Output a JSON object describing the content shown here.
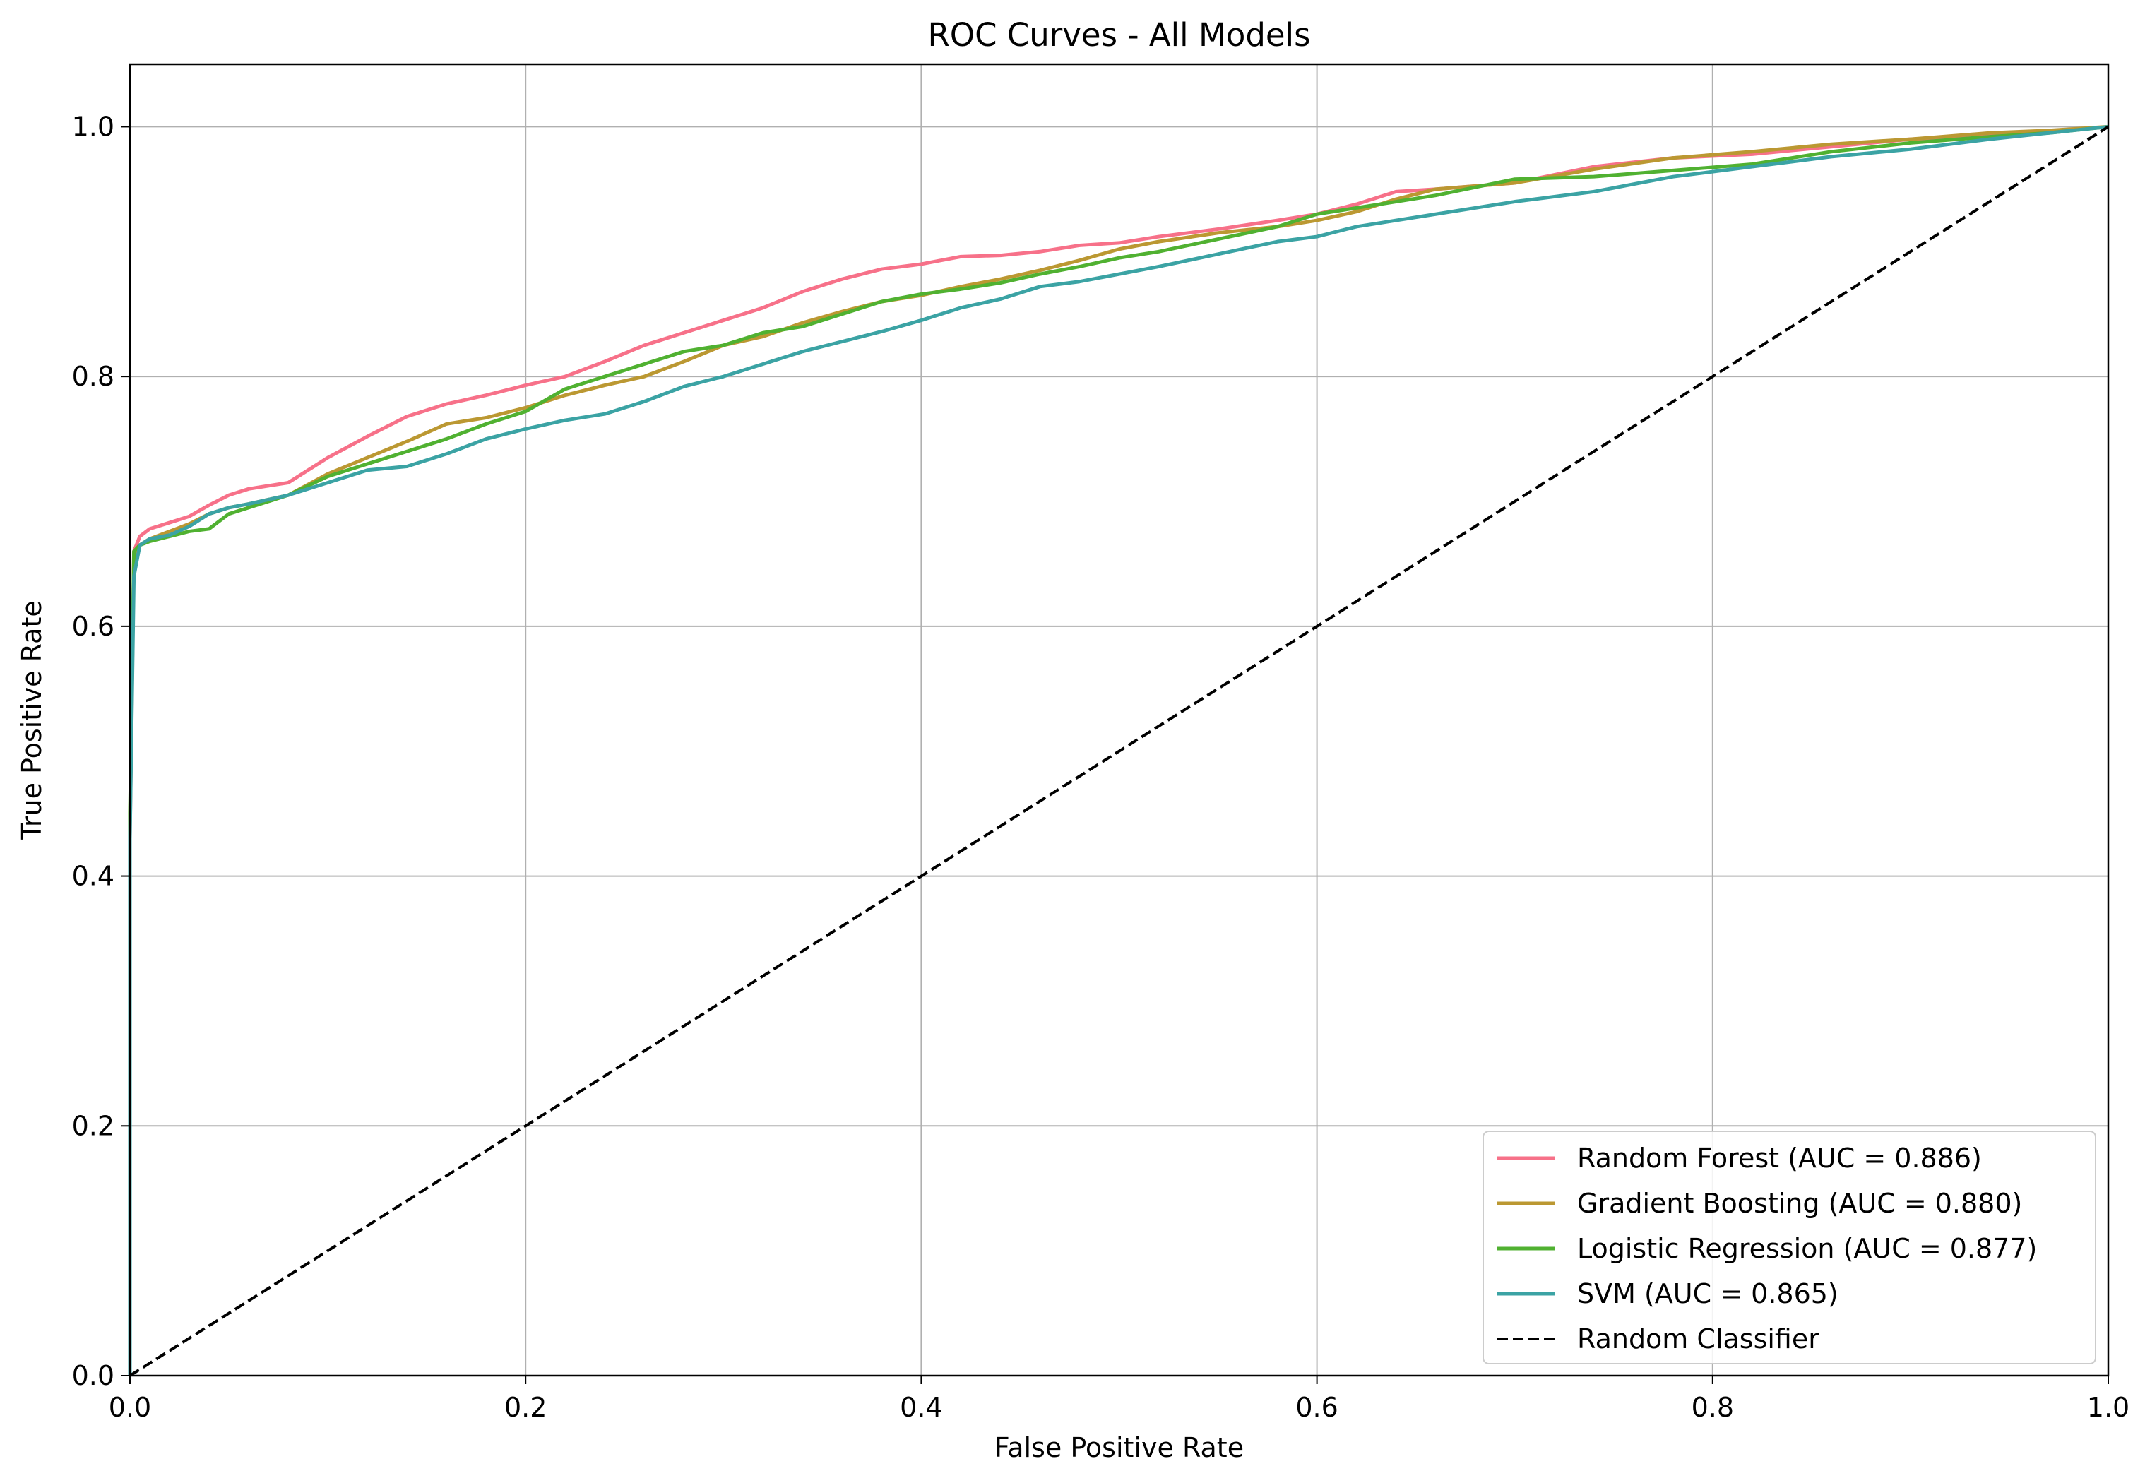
{
  "chart_data": {
    "type": "line",
    "title": "ROC Curves - All Models",
    "xlabel": "False Positive Rate",
    "ylabel": "True Positive Rate",
    "xlim": [
      0.0,
      1.0
    ],
    "ylim": [
      0.0,
      1.05
    ],
    "xticks": [
      0.0,
      0.2,
      0.4,
      0.6,
      0.8,
      1.0
    ],
    "xtick_labels": [
      "0.0",
      "0.2",
      "0.4",
      "0.6",
      "0.8",
      "1.0"
    ],
    "yticks": [
      0.0,
      0.2,
      0.4,
      0.6,
      0.8,
      1.0
    ],
    "ytick_labels": [
      "0.0",
      "0.2",
      "0.4",
      "0.6",
      "0.8",
      "1.0"
    ],
    "grid": true,
    "legend_position": "lower-right",
    "series": [
      {
        "name": "Random Forest (AUC = 0.886)",
        "color": "#f77189",
        "style": "solid",
        "x": [
          0.0,
          0.0,
          0.002,
          0.005,
          0.01,
          0.02,
          0.03,
          0.04,
          0.05,
          0.06,
          0.08,
          0.1,
          0.12,
          0.14,
          0.16,
          0.18,
          0.2,
          0.22,
          0.24,
          0.26,
          0.28,
          0.3,
          0.32,
          0.34,
          0.36,
          0.38,
          0.4,
          0.42,
          0.44,
          0.46,
          0.48,
          0.5,
          0.52,
          0.55,
          0.58,
          0.6,
          0.62,
          0.64,
          0.66,
          0.7,
          0.74,
          0.78,
          0.82,
          0.86,
          0.9,
          0.94,
          0.97,
          1.0
        ],
        "y": [
          0.0,
          0.43,
          0.66,
          0.672,
          0.678,
          0.683,
          0.688,
          0.697,
          0.705,
          0.71,
          0.715,
          0.735,
          0.752,
          0.768,
          0.778,
          0.785,
          0.793,
          0.8,
          0.812,
          0.825,
          0.835,
          0.845,
          0.855,
          0.868,
          0.878,
          0.886,
          0.89,
          0.896,
          0.897,
          0.9,
          0.905,
          0.907,
          0.912,
          0.918,
          0.925,
          0.93,
          0.938,
          0.948,
          0.95,
          0.955,
          0.968,
          0.975,
          0.978,
          0.984,
          0.99,
          0.993,
          0.996,
          1.0
        ]
      },
      {
        "name": "Gradient Boosting (AUC = 0.880)",
        "color": "#bb9832",
        "style": "solid",
        "x": [
          0.0,
          0.0,
          0.002,
          0.005,
          0.01,
          0.02,
          0.03,
          0.04,
          0.05,
          0.06,
          0.08,
          0.1,
          0.12,
          0.14,
          0.16,
          0.18,
          0.2,
          0.22,
          0.24,
          0.26,
          0.28,
          0.3,
          0.32,
          0.34,
          0.36,
          0.38,
          0.4,
          0.42,
          0.44,
          0.46,
          0.48,
          0.5,
          0.52,
          0.55,
          0.58,
          0.6,
          0.62,
          0.64,
          0.66,
          0.7,
          0.74,
          0.78,
          0.82,
          0.86,
          0.9,
          0.94,
          0.97,
          1.0
        ],
        "y": [
          0.0,
          0.44,
          0.655,
          0.665,
          0.67,
          0.676,
          0.682,
          0.69,
          0.695,
          0.698,
          0.705,
          0.722,
          0.735,
          0.748,
          0.762,
          0.767,
          0.775,
          0.785,
          0.793,
          0.8,
          0.812,
          0.825,
          0.832,
          0.843,
          0.852,
          0.86,
          0.865,
          0.872,
          0.878,
          0.885,
          0.893,
          0.902,
          0.908,
          0.915,
          0.92,
          0.925,
          0.932,
          0.942,
          0.95,
          0.955,
          0.966,
          0.975,
          0.98,
          0.986,
          0.99,
          0.995,
          0.997,
          1.0
        ]
      },
      {
        "name": "Logistic Regression (AUC = 0.877)",
        "color": "#50b131",
        "style": "solid",
        "x": [
          0.0,
          0.0,
          0.002,
          0.005,
          0.01,
          0.02,
          0.03,
          0.04,
          0.05,
          0.06,
          0.08,
          0.1,
          0.12,
          0.14,
          0.16,
          0.18,
          0.2,
          0.22,
          0.24,
          0.26,
          0.28,
          0.3,
          0.32,
          0.34,
          0.36,
          0.38,
          0.4,
          0.42,
          0.44,
          0.46,
          0.48,
          0.5,
          0.52,
          0.55,
          0.58,
          0.6,
          0.62,
          0.64,
          0.66,
          0.7,
          0.74,
          0.78,
          0.82,
          0.86,
          0.9,
          0.94,
          0.97,
          1.0
        ],
        "y": [
          0.0,
          0.45,
          0.66,
          0.665,
          0.668,
          0.672,
          0.676,
          0.678,
          0.69,
          0.695,
          0.705,
          0.72,
          0.73,
          0.74,
          0.75,
          0.762,
          0.772,
          0.79,
          0.8,
          0.81,
          0.82,
          0.825,
          0.835,
          0.84,
          0.85,
          0.86,
          0.866,
          0.87,
          0.875,
          0.882,
          0.888,
          0.895,
          0.9,
          0.91,
          0.92,
          0.93,
          0.935,
          0.94,
          0.945,
          0.958,
          0.96,
          0.965,
          0.97,
          0.98,
          0.987,
          0.992,
          0.995,
          1.0
        ]
      },
      {
        "name": "SVM (AUC = 0.865)",
        "color": "#3ba3a4",
        "style": "solid",
        "x": [
          0.0,
          0.0,
          0.002,
          0.005,
          0.01,
          0.02,
          0.03,
          0.04,
          0.05,
          0.06,
          0.08,
          0.1,
          0.12,
          0.14,
          0.16,
          0.18,
          0.2,
          0.22,
          0.24,
          0.26,
          0.28,
          0.3,
          0.32,
          0.34,
          0.36,
          0.38,
          0.4,
          0.42,
          0.44,
          0.46,
          0.48,
          0.5,
          0.52,
          0.55,
          0.58,
          0.6,
          0.62,
          0.64,
          0.66,
          0.7,
          0.74,
          0.78,
          0.82,
          0.86,
          0.9,
          0.94,
          0.97,
          1.0
        ],
        "y": [
          0.0,
          0.43,
          0.64,
          0.665,
          0.67,
          0.673,
          0.68,
          0.69,
          0.695,
          0.698,
          0.705,
          0.715,
          0.725,
          0.728,
          0.738,
          0.75,
          0.758,
          0.765,
          0.77,
          0.78,
          0.792,
          0.8,
          0.81,
          0.82,
          0.828,
          0.836,
          0.845,
          0.855,
          0.862,
          0.872,
          0.876,
          0.882,
          0.888,
          0.898,
          0.908,
          0.912,
          0.92,
          0.925,
          0.93,
          0.94,
          0.948,
          0.96,
          0.968,
          0.976,
          0.982,
          0.99,
          0.995,
          1.0
        ]
      },
      {
        "name": "Random Classifier",
        "color": "#000000",
        "style": "dashed",
        "x": [
          0.0,
          1.0
        ],
        "y": [
          0.0,
          1.0
        ]
      }
    ]
  }
}
